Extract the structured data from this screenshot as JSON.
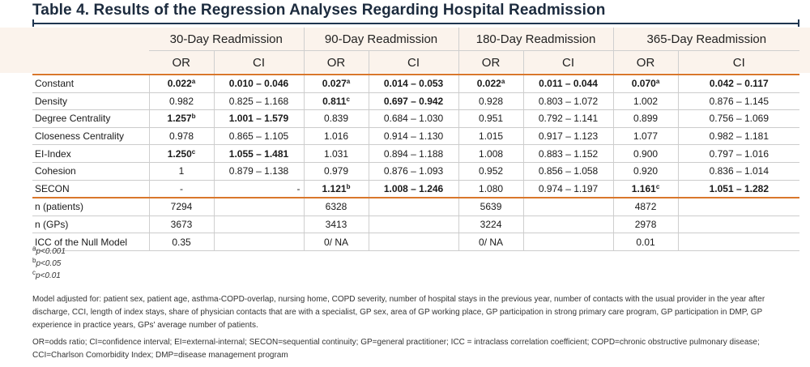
{
  "title": "Table 4. Results of the Regression Analyses Regarding Hospital Readmission",
  "headers": {
    "groups": [
      "30-Day Readmission",
      "90-Day Readmission",
      "180-Day Readmission",
      "365-Day Readmission"
    ],
    "or": "OR",
    "ci": "CI"
  },
  "rows": [
    {
      "label": "Constant",
      "cells": [
        {
          "or": "0.022",
          "sup": "a",
          "bold": true,
          "ci": "0.010 – 0.046",
          "cibold": true
        },
        {
          "or": "0.027",
          "sup": "a",
          "bold": true,
          "ci": "0.014 – 0.053",
          "cibold": true
        },
        {
          "or": "0.022",
          "sup": "a",
          "bold": true,
          "ci": "0.011 – 0.044",
          "cibold": true
        },
        {
          "or": "0.070",
          "sup": "a",
          "bold": true,
          "ci": "0.042 – 0.117",
          "cibold": true
        }
      ]
    },
    {
      "label": "Density",
      "cells": [
        {
          "or": "0.982",
          "sup": "",
          "bold": false,
          "ci": "0.825 – 1.168",
          "cibold": false
        },
        {
          "or": "0.811",
          "sup": "c",
          "bold": true,
          "ci": "0.697 – 0.942",
          "cibold": true
        },
        {
          "or": "0.928",
          "sup": "",
          "bold": false,
          "ci": "0.803 – 1.072",
          "cibold": false
        },
        {
          "or": "1.002",
          "sup": "",
          "bold": false,
          "ci": "0.876 – 1.145",
          "cibold": false
        }
      ]
    },
    {
      "label": "Degree Centrality",
      "cells": [
        {
          "or": "1.257",
          "sup": "b",
          "bold": true,
          "ci": "1.001 – 1.579",
          "cibold": true
        },
        {
          "or": "0.839",
          "sup": "",
          "bold": false,
          "ci": "0.684 – 1.030",
          "cibold": false
        },
        {
          "or": "0.951",
          "sup": "",
          "bold": false,
          "ci": "0.792 – 1.141",
          "cibold": false
        },
        {
          "or": "0.899",
          "sup": "",
          "bold": false,
          "ci": "0.756 – 1.069",
          "cibold": false
        }
      ]
    },
    {
      "label": "Closeness Centrality",
      "cells": [
        {
          "or": "0.978",
          "sup": "",
          "bold": false,
          "ci": "0.865 – 1.105",
          "cibold": false
        },
        {
          "or": "1.016",
          "sup": "",
          "bold": false,
          "ci": "0.914 – 1.130",
          "cibold": false
        },
        {
          "or": "1.015",
          "sup": "",
          "bold": false,
          "ci": "0.917 – 1.123",
          "cibold": false
        },
        {
          "or": "1.077",
          "sup": "",
          "bold": false,
          "ci": "0.982 – 1.181",
          "cibold": false
        }
      ]
    },
    {
      "label": "EI-Index",
      "cells": [
        {
          "or": "1.250",
          "sup": "c",
          "bold": true,
          "ci": "1.055 – 1.481",
          "cibold": true
        },
        {
          "or": "1.031",
          "sup": "",
          "bold": false,
          "ci": "0.894 – 1.188",
          "cibold": false
        },
        {
          "or": "1.008",
          "sup": "",
          "bold": false,
          "ci": "0.883 – 1.152",
          "cibold": false
        },
        {
          "or": "0.900",
          "sup": "",
          "bold": false,
          "ci": "0.797 – 1.016",
          "cibold": false
        }
      ]
    },
    {
      "label": "Cohesion",
      "cells": [
        {
          "or": "1",
          "sup": "",
          "bold": false,
          "ci": "0.879 – 1.138",
          "cibold": false
        },
        {
          "or": "0.979",
          "sup": "",
          "bold": false,
          "ci": "0.876 – 1.093",
          "cibold": false
        },
        {
          "or": "0.952",
          "sup": "",
          "bold": false,
          "ci": "0.856 – 1.058",
          "cibold": false
        },
        {
          "or": "0.920",
          "sup": "",
          "bold": false,
          "ci": "0.836 – 1.014",
          "cibold": false
        }
      ]
    },
    {
      "label": "SECON",
      "cells": [
        {
          "or": "-",
          "sup": "",
          "bold": false,
          "ci": "-",
          "cibold": false,
          "ciright": true
        },
        {
          "or": "1.121",
          "sup": "b",
          "bold": true,
          "ci": "1.008 – 1.246",
          "cibold": true
        },
        {
          "or": "1.080",
          "sup": "",
          "bold": false,
          "ci": "0.974 – 1.197",
          "cibold": false
        },
        {
          "or": "1.161",
          "sup": "c",
          "bold": true,
          "ci": "1.051 – 1.282",
          "cibold": true
        }
      ]
    },
    {
      "label": "n (patients)",
      "cells": [
        {
          "or": "7294",
          "sup": "",
          "bold": false,
          "ci": "",
          "cibold": false
        },
        {
          "or": "6328",
          "sup": "",
          "bold": false,
          "ci": "",
          "cibold": false
        },
        {
          "or": "5639",
          "sup": "",
          "bold": false,
          "ci": "",
          "cibold": false
        },
        {
          "or": "4872",
          "sup": "",
          "bold": false,
          "ci": "",
          "cibold": false
        }
      ]
    },
    {
      "label": "n (GPs)",
      "cells": [
        {
          "or": "3673",
          "sup": "",
          "bold": false,
          "ci": "",
          "cibold": false
        },
        {
          "or": "3413",
          "sup": "",
          "bold": false,
          "ci": "",
          "cibold": false
        },
        {
          "or": "3224",
          "sup": "",
          "bold": false,
          "ci": "",
          "cibold": false
        },
        {
          "or": "2978",
          "sup": "",
          "bold": false,
          "ci": "",
          "cibold": false
        }
      ]
    },
    {
      "label": "ICC of the Null Model",
      "cells": [
        {
          "or": "0.35",
          "sup": "",
          "bold": false,
          "ci": "",
          "cibold": false
        },
        {
          "or": "0/ NA",
          "sup": "",
          "bold": false,
          "ci": "",
          "cibold": false
        },
        {
          "or": "0/ NA",
          "sup": "",
          "bold": false,
          "ci": "",
          "cibold": false
        },
        {
          "or": "0.01",
          "sup": "",
          "bold": false,
          "ci": "",
          "cibold": false
        }
      ]
    }
  ],
  "footnotes": [
    {
      "mark": "a",
      "text": "p<0.001"
    },
    {
      "mark": "b",
      "text": "p<0.05"
    },
    {
      "mark": "c",
      "text": "p<0.01"
    }
  ],
  "model_note": "Model adjusted for: patient sex, patient age, asthma-COPD-overlap, nursing home, COPD severity, number of hospital stays in the previous year, number of contacts with the usual provider in the year after discharge, CCI, length of index stays, share of physician contacts that are with a specialist, GP sex, area of GP working place, GP participation in strong primary care program, GP participation in DMP, GP experience in practice years, GPs' average number of patients.",
  "abbreviations": "OR=odds ratio; CI=confidence interval; EI=external-internal; SECON=sequential continuity; GP=general practitioner; ICC = intraclass correlation coefficient; COPD=chronic obstructive pulmonary disease; CCI=Charlson Comorbidity Index; DMP=disease management program"
}
